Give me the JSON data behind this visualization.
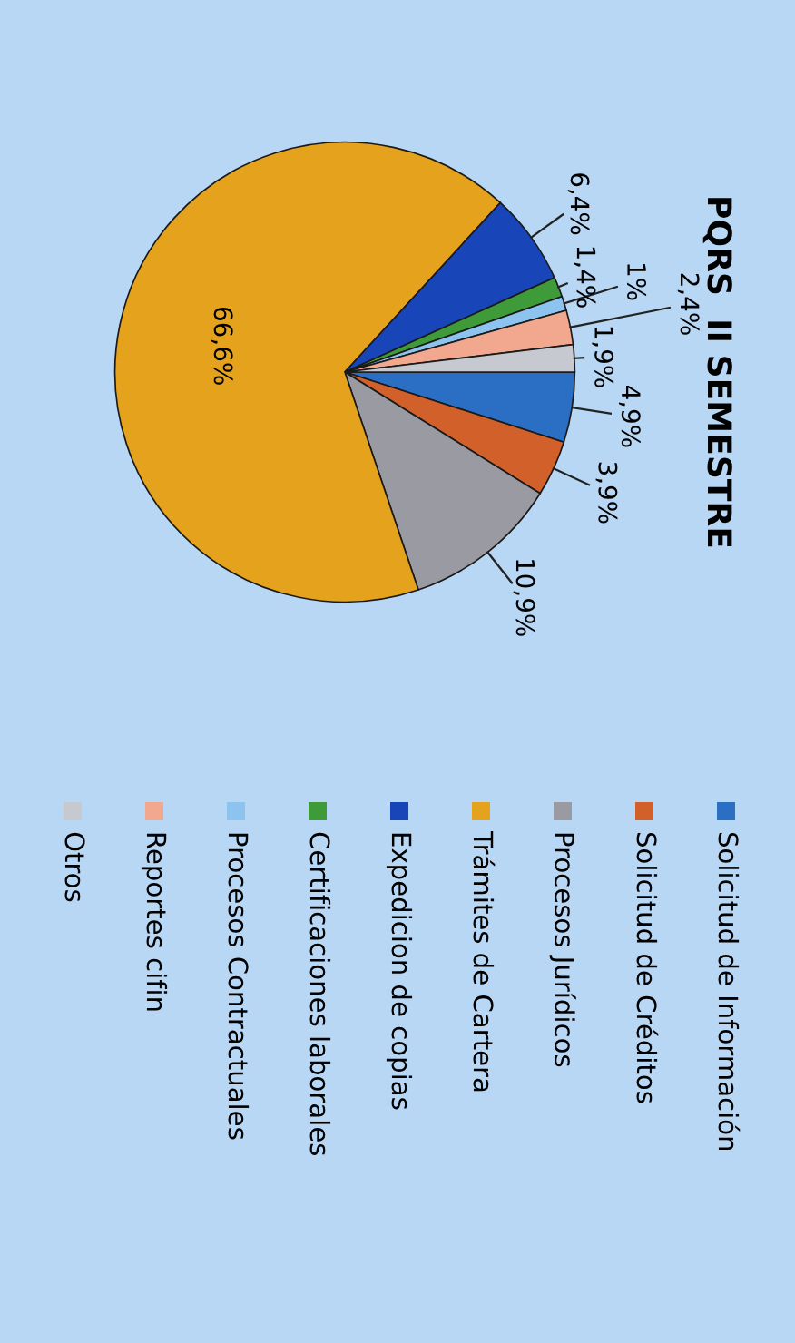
{
  "chart_data": {
    "type": "pie",
    "title": "PQRS  II SEMESTRE",
    "categories": [
      "Solicitud de Información",
      "Solicitud de Créditos",
      "Procesos Jurídicos",
      "Trámites de Cartera",
      "Expedicion de copias",
      "Certificaciones laborales",
      "Procesos Contractuales",
      "Reportes cifin",
      "Otros"
    ],
    "values": [
      4.9,
      3.9,
      10.9,
      66.6,
      6.4,
      1.4,
      1,
      2.4,
      1.9
    ],
    "value_labels": [
      "4,9%",
      "3,9%",
      "10,9%",
      "66,6%",
      "6,4%",
      "1,4%",
      "1%",
      "2,4%",
      "1,9%"
    ],
    "colors": [
      "#2a6fc4",
      "#d2602a",
      "#9a9aa2",
      "#e5a21c",
      "#1846b8",
      "#3f9a3a",
      "#8cc3ef",
      "#f2a88e",
      "#c6c9cf"
    ],
    "legend": "bottom"
  }
}
